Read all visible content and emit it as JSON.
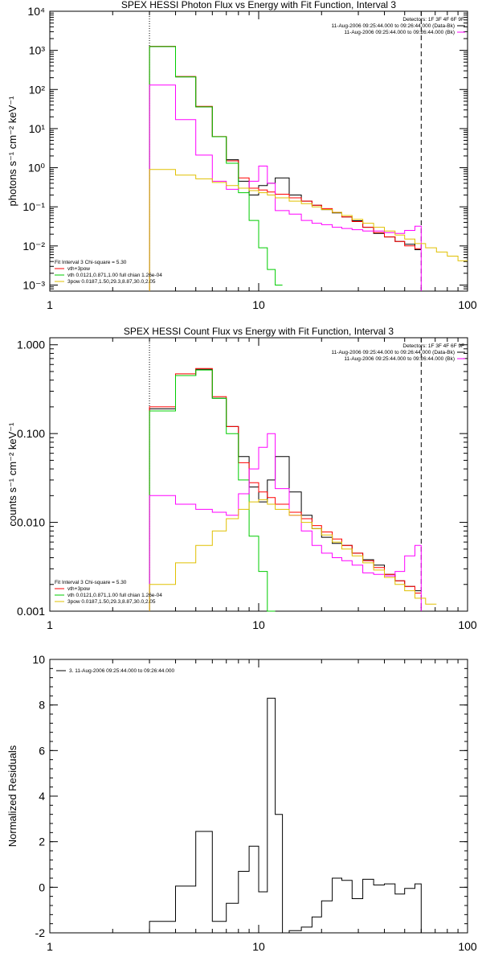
{
  "chart_data": [
    {
      "type": "line",
      "title": "SPEX HESSI Photon Flux vs Energy with Fit Function, Interval 3",
      "xlabel": "",
      "ylabel": "photons s⁻¹ cm⁻² keV⁻¹",
      "x_scale": "log",
      "y_scale": "log",
      "xlim": [
        1,
        100
      ],
      "ylim": [
        0.0007,
        10000
      ],
      "x_ticks": [
        {
          "v": 1,
          "label": "1"
        },
        {
          "v": 10,
          "label": "10"
        },
        {
          "v": 100,
          "label": "100"
        }
      ],
      "y_ticks": [
        {
          "v": 0.001,
          "label": "10⁻³"
        },
        {
          "v": 0.01,
          "label": "10⁻²"
        },
        {
          "v": 0.1,
          "label": "10⁻¹"
        },
        {
          "v": 1,
          "label": "10⁰"
        },
        {
          "v": 10,
          "label": "10¹"
        },
        {
          "v": 100,
          "label": "10²"
        },
        {
          "v": 1000,
          "label": "10³"
        },
        {
          "v": 10000,
          "label": "10⁴"
        }
      ],
      "vlines": [
        {
          "x": 3,
          "style": "dotted"
        },
        {
          "x": 60,
          "style": "dashed"
        }
      ],
      "legend_top_right": [
        {
          "text": "Detectors: 1F 3F 4F 6F 9F",
          "color": ""
        },
        {
          "text": "11-Aug-2006 09:25:44.000 to 09:26:44.000 (Data-Bk)",
          "color": "#000000"
        },
        {
          "text": "11-Aug-2006 09:25:44.000 to 09:26:44.000 (Bk)",
          "color": "#ff00ff"
        }
      ],
      "legend_bottom_left": [
        {
          "text": "Fit Interval 3    Chi-square = 5.30",
          "color": ""
        },
        {
          "text": "vth+3pow",
          "color": "#ff0000"
        },
        {
          "text": "vth 0.0121,0.871,1.00   full chian 1.26e-04",
          "color": "#00cc00"
        },
        {
          "text": "3pow 0.0187,1.50,29.3,8.87,30.0,2.05",
          "color": "#e0c000"
        }
      ],
      "series": [
        {
          "color": "#000000",
          "style": "step",
          "edges": [
            3,
            4,
            5,
            6,
            7,
            8,
            9,
            10,
            11,
            12,
            14,
            16,
            18,
            20,
            22.5,
            25,
            28,
            31.5,
            35.5,
            40,
            45,
            50,
            56,
            60
          ],
          "values": [
            1250,
            210,
            36,
            6.2,
            1.6,
            0.45,
            0.2,
            0.35,
            0.4,
            0.55,
            0.2,
            0.14,
            0.11,
            0.085,
            0.07,
            0.055,
            0.044,
            0.03,
            0.021,
            0.017,
            0.013,
            0.011,
            0.008
          ]
        },
        {
          "color": "#ff0000",
          "style": "step",
          "edges": [
            3,
            4,
            5,
            6,
            7,
            8,
            9,
            10,
            11,
            12,
            14,
            16,
            18,
            20,
            22.5,
            25,
            28,
            31.5,
            35.5,
            40,
            45,
            50,
            56,
            60
          ],
          "values": [
            1270,
            215,
            37,
            6.3,
            1.5,
            0.55,
            0.3,
            0.27,
            0.24,
            0.21,
            0.17,
            0.14,
            0.11,
            0.09,
            0.072,
            0.055,
            0.042,
            0.03,
            0.022,
            0.017,
            0.013,
            0.01,
            0.0085
          ]
        },
        {
          "color": "#00cc00",
          "style": "step",
          "edges": [
            3,
            4,
            5,
            6,
            7,
            8,
            9,
            10,
            11,
            12,
            13
          ],
          "values": [
            1250,
            210,
            36,
            6.2,
            1.3,
            0.23,
            0.045,
            0.009,
            0.0025,
            0.001
          ]
        },
        {
          "color": "#ff00ff",
          "style": "step",
          "edges": [
            3,
            4,
            5,
            6,
            7,
            8,
            9,
            10,
            11,
            12,
            14,
            16,
            18,
            20,
            22.5,
            25,
            28,
            31.5,
            35.5,
            40,
            45,
            50,
            56,
            60
          ],
          "values": [
            130,
            17,
            2.1,
            0.45,
            0.28,
            0.3,
            0.45,
            1.1,
            0.4,
            0.08,
            0.065,
            0.045,
            0.038,
            0.035,
            0.03,
            0.028,
            0.026,
            0.024,
            0.024,
            0.022,
            0.021,
            0.025,
            0.032
          ]
        },
        {
          "color": "#e0c000",
          "style": "step",
          "edges": [
            3,
            4,
            5,
            6,
            7,
            8,
            9,
            10,
            11,
            12,
            14,
            16,
            18,
            20,
            22.5,
            25,
            28,
            31.5,
            35.5,
            40,
            45,
            50,
            56,
            63,
            71,
            80,
            90,
            100
          ],
          "values": [
            0.9,
            0.65,
            0.52,
            0.42,
            0.35,
            0.3,
            0.26,
            0.23,
            0.2,
            0.17,
            0.14,
            0.12,
            0.1,
            0.085,
            0.072,
            0.06,
            0.048,
            0.038,
            0.03,
            0.024,
            0.019,
            0.015,
            0.0115,
            0.009,
            0.007,
            0.0055,
            0.0042
          ]
        }
      ]
    },
    {
      "type": "line",
      "title": "SPEX HESSI Count Flux vs Energy with Fit Function, Interval 3",
      "xlabel": "",
      "ylabel": "counts s⁻¹ cm⁻² keV⁻¹",
      "x_scale": "log",
      "y_scale": "log",
      "xlim": [
        1,
        100
      ],
      "ylim": [
        0.001,
        1.2
      ],
      "x_ticks": [
        {
          "v": 1,
          "label": "1"
        },
        {
          "v": 10,
          "label": "10"
        },
        {
          "v": 100,
          "label": "100"
        }
      ],
      "y_ticks": [
        {
          "v": 0.001,
          "label": "0.001"
        },
        {
          "v": 0.01,
          "label": "0.010"
        },
        {
          "v": 0.1,
          "label": "0.100"
        },
        {
          "v": 1,
          "label": "1.000"
        }
      ],
      "vlines": [
        {
          "x": 3,
          "style": "dotted"
        },
        {
          "x": 60,
          "style": "dashed"
        }
      ],
      "legend_top_right": [
        {
          "text": "Detectors: 1F 3F 4F 6F 9F",
          "color": ""
        },
        {
          "text": "11-Aug-2006 09:25:44.000 to 09:26:44.000 (Data-Bk)",
          "color": "#000000"
        },
        {
          "text": "11-Aug-2006 09:25:44.000 to 09:26:44.000 (Bk)",
          "color": "#ff00ff"
        }
      ],
      "legend_bottom_left": [
        {
          "text": "Fit Interval 3    Chi-square = 5.30",
          "color": ""
        },
        {
          "text": "vth+3pow",
          "color": "#ff0000"
        },
        {
          "text": "vth 0.0121,0.871,1.00   full chian 1.26e-04",
          "color": "#00cc00"
        },
        {
          "text": "3pow 0.0187,1.50,29.3,8.87,30.0,2.05",
          "color": "#e0c000"
        }
      ],
      "series": [
        {
          "color": "#000000",
          "style": "step",
          "edges": [
            3,
            4,
            5,
            6,
            7,
            8,
            9,
            10,
            11,
            12,
            14,
            16,
            18,
            20,
            22.5,
            25,
            28,
            31.5,
            35.5,
            40,
            45,
            50,
            56,
            60
          ],
          "values": [
            0.19,
            0.45,
            0.53,
            0.25,
            0.12,
            0.055,
            0.025,
            0.017,
            0.03,
            0.055,
            0.022,
            0.012,
            0.0085,
            0.0068,
            0.0058,
            0.0055,
            0.0045,
            0.0038,
            0.0033,
            0.0026,
            0.0022,
            0.0019,
            0.0017
          ]
        },
        {
          "color": "#ff0000",
          "style": "step",
          "edges": [
            3,
            4,
            5,
            6,
            7,
            8,
            9,
            10,
            11,
            12,
            14,
            16,
            18,
            20,
            22.5,
            25,
            28,
            31.5,
            35.5,
            40,
            45,
            50,
            56,
            60
          ],
          "values": [
            0.2,
            0.47,
            0.54,
            0.26,
            0.12,
            0.047,
            0.028,
            0.022,
            0.019,
            0.016,
            0.013,
            0.011,
            0.0092,
            0.0078,
            0.0065,
            0.0055,
            0.0045,
            0.0037,
            0.0031,
            0.0026,
            0.0022,
            0.0019,
            0.0016
          ]
        },
        {
          "color": "#00cc00",
          "style": "step",
          "edges": [
            3,
            4,
            5,
            6,
            7,
            8,
            9,
            10,
            11,
            12
          ],
          "values": [
            0.18,
            0.45,
            0.52,
            0.25,
            0.1,
            0.03,
            0.007,
            0.0028,
            0.001
          ]
        },
        {
          "color": "#ff00ff",
          "style": "step",
          "edges": [
            3,
            4,
            5,
            6,
            7,
            8,
            9,
            10,
            11,
            12,
            14,
            16,
            18,
            20,
            22.5,
            25,
            28,
            31.5,
            35.5,
            40,
            45,
            50,
            56,
            60
          ],
          "values": [
            0.02,
            0.016,
            0.014,
            0.013,
            0.012,
            0.021,
            0.04,
            0.07,
            0.1,
            0.024,
            0.012,
            0.008,
            0.0055,
            0.0045,
            0.004,
            0.0037,
            0.0033,
            0.0027,
            0.0026,
            0.0025,
            0.0028,
            0.0042,
            0.0055
          ]
        },
        {
          "color": "#e0c000",
          "style": "step",
          "edges": [
            3,
            4,
            5,
            6,
            7,
            8,
            9,
            10,
            11,
            12,
            14,
            16,
            18,
            20,
            22.5,
            25,
            28,
            31.5,
            35.5,
            40,
            45,
            50,
            56,
            63,
            71
          ],
          "values": [
            0.002,
            0.0035,
            0.0055,
            0.008,
            0.011,
            0.014,
            0.017,
            0.018,
            0.016,
            0.014,
            0.012,
            0.01,
            0.0085,
            0.0072,
            0.006,
            0.005,
            0.0042,
            0.0035,
            0.0029,
            0.0024,
            0.002,
            0.0017,
            0.0014,
            0.0012
          ]
        }
      ]
    },
    {
      "type": "line",
      "title": "",
      "xlabel": "",
      "ylabel": "Normalized Residuals",
      "x_scale": "log",
      "y_scale": "linear",
      "xlim": [
        1,
        100
      ],
      "ylim": [
        -2,
        10
      ],
      "x_ticks": [
        {
          "v": 1,
          "label": "1"
        },
        {
          "v": 10,
          "label": "10"
        },
        {
          "v": 100,
          "label": "100"
        }
      ],
      "y_ticks": [
        {
          "v": -2,
          "label": "-2"
        },
        {
          "v": 0,
          "label": "0"
        },
        {
          "v": 2,
          "label": "2"
        },
        {
          "v": 4,
          "label": "4"
        },
        {
          "v": 6,
          "label": "6"
        },
        {
          "v": 8,
          "label": "8"
        },
        {
          "v": 10,
          "label": "10"
        }
      ],
      "vlines": [],
      "legend_top_right": [],
      "legend_bottom_left": [],
      "legend_top_left": [
        {
          "text": "3. 11-Aug-2006 09:25:44.000 to 09:26:44.000",
          "color": "#000000"
        }
      ],
      "series": [
        {
          "color": "#000000",
          "style": "step",
          "edges": [
            3,
            4,
            5,
            6,
            7,
            8,
            9,
            10,
            11,
            12,
            13,
            14,
            16,
            18,
            20,
            22.5,
            25,
            28,
            31.5,
            35.5,
            40,
            45,
            50,
            56,
            60
          ],
          "values": [
            -1.5,
            0.05,
            2.45,
            -1.5,
            -0.7,
            0.7,
            1.8,
            -0.2,
            8.3,
            3.2,
            -2.0,
            -1.9,
            -1.75,
            -1.3,
            -0.6,
            0.4,
            0.3,
            -0.5,
            0.35,
            0.1,
            0.15,
            -0.3,
            -0.05,
            0.15
          ]
        }
      ]
    }
  ]
}
